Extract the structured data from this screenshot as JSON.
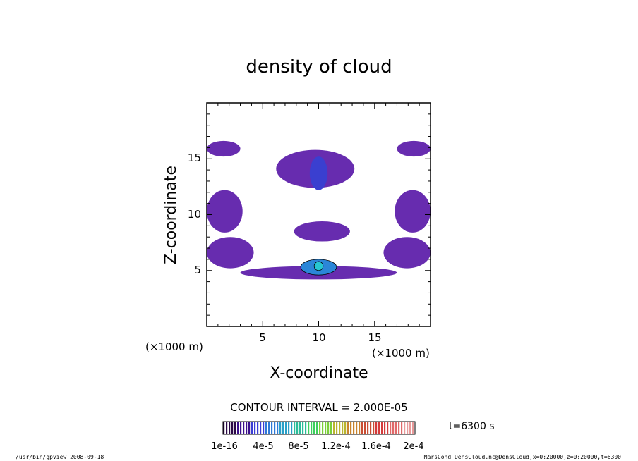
{
  "chart_data": {
    "type": "heatmap",
    "title": "density of cloud",
    "xlabel": "X-coordinate",
    "ylabel": "Z-coordinate",
    "x_unit": "(×1000 m)",
    "y_unit": "(×1000 m)",
    "xlim": [
      0,
      20
    ],
    "ylim": [
      0,
      20
    ],
    "xticks": [
      "5",
      "10",
      "15"
    ],
    "yticks": [
      "5",
      "10",
      "15"
    ],
    "contour_interval_text": "CONTOUR INTERVAL = 2.000E-05",
    "time_label": "t=6300 s",
    "colorbar": {
      "labels": [
        "1e-16",
        "4e-5",
        "8e-5",
        "1.2e-4",
        "1.6e-4",
        "2e-4"
      ],
      "colors": [
        "#2a0845",
        "#3b0f8c",
        "#3a3dd6",
        "#2f7ad8",
        "#28a0c8",
        "#2bbd9a",
        "#3ccf5c",
        "#7ccf3a",
        "#b9b52f",
        "#c9832c",
        "#c94d33",
        "#d43a3a",
        "#e06a6a",
        "#e89a9a"
      ]
    },
    "cloud_regions": [
      {
        "x": [
          0.0,
          3.0
        ],
        "z": [
          15.2,
          16.6
        ],
        "level": 1
      },
      {
        "x": [
          17.0,
          20.0
        ],
        "z": [
          15.2,
          16.6
        ],
        "level": 1
      },
      {
        "x": [
          6.2,
          13.2
        ],
        "z": [
          12.4,
          15.8
        ],
        "level": 1
      },
      {
        "x": [
          9.2,
          10.8
        ],
        "z": [
          12.2,
          15.2
        ],
        "level": 2
      },
      {
        "x": [
          0.0,
          3.2
        ],
        "z": [
          8.4,
          12.2
        ],
        "level": 1
      },
      {
        "x": [
          16.8,
          20.0
        ],
        "z": [
          8.4,
          12.2
        ],
        "level": 1
      },
      {
        "x": [
          7.8,
          12.8
        ],
        "z": [
          7.6,
          9.4
        ],
        "level": 1
      },
      {
        "x": [
          0.0,
          4.2
        ],
        "z": [
          5.2,
          8.0
        ],
        "level": 1
      },
      {
        "x": [
          15.8,
          20.0
        ],
        "z": [
          5.2,
          8.0
        ],
        "level": 1
      },
      {
        "x": [
          3.0,
          17.0
        ],
        "z": [
          4.2,
          5.4
        ],
        "level": 1
      },
      {
        "x": [
          8.4,
          11.6
        ],
        "z": [
          4.6,
          6.0
        ],
        "level": 3
      },
      {
        "x": [
          9.6,
          10.4
        ],
        "z": [
          5.0,
          5.8
        ],
        "level": 4
      }
    ]
  },
  "footer": {
    "left": "/usr/bin/gpview   2008-09-18",
    "right": "MarsCond_DensCloud.nc@DensCloud,x=0:20000,z=0:20000,t=6300"
  }
}
